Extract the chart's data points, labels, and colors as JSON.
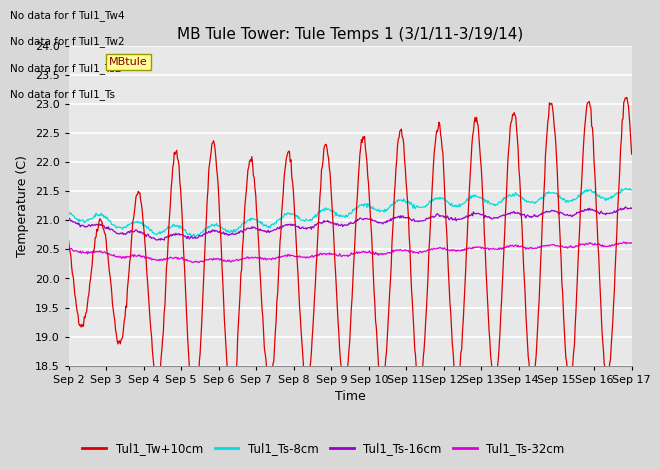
{
  "title": "MB Tule Tower: Tule Temps 1 (3/1/11-3/19/14)",
  "ylabel": "Temperature (C)",
  "xlabel": "Time",
  "ylim": [
    18.5,
    24.0
  ],
  "yticks": [
    18.5,
    19.0,
    19.5,
    20.0,
    20.5,
    21.0,
    21.5,
    22.0,
    22.5,
    23.0,
    23.5,
    24.0
  ],
  "colors": {
    "Tul1_Tw+10cm": "#dd0000",
    "Tul1_Ts-8cm": "#00dddd",
    "Tul1_Ts-16cm": "#9900cc",
    "Tul1_Ts-32cm": "#dd00dd"
  },
  "no_data_texts": [
    "No data for f Tul1_Tw4",
    "No data for f Tul1_Tw2",
    "No data for f Tul1_Ts2",
    "No data for f Tul1_Ts"
  ],
  "legend_entries": [
    "Tul1_Tw+10cm",
    "Tul1_Ts-8cm",
    "Tul1_Ts-16cm",
    "Tul1_Ts-32cm"
  ],
  "tooltip_text": "MBtule",
  "x_tick_labels": [
    "Sep 2",
    "Sep 3",
    "Sep 4",
    "Sep 5",
    "Sep 6",
    "Sep 7",
    "Sep 8",
    "Sep 9",
    "Sep 10",
    "Sep 11",
    "Sep 12",
    "Sep 13",
    "Sep 14",
    "Sep 15",
    "Sep 16",
    "Sep 17"
  ],
  "background_color": "#d8d8d8",
  "plot_bg_color": "#e8e8e8",
  "grid_color": "#ffffff",
  "title_fontsize": 11,
  "axis_fontsize": 9,
  "tick_fontsize": 8
}
